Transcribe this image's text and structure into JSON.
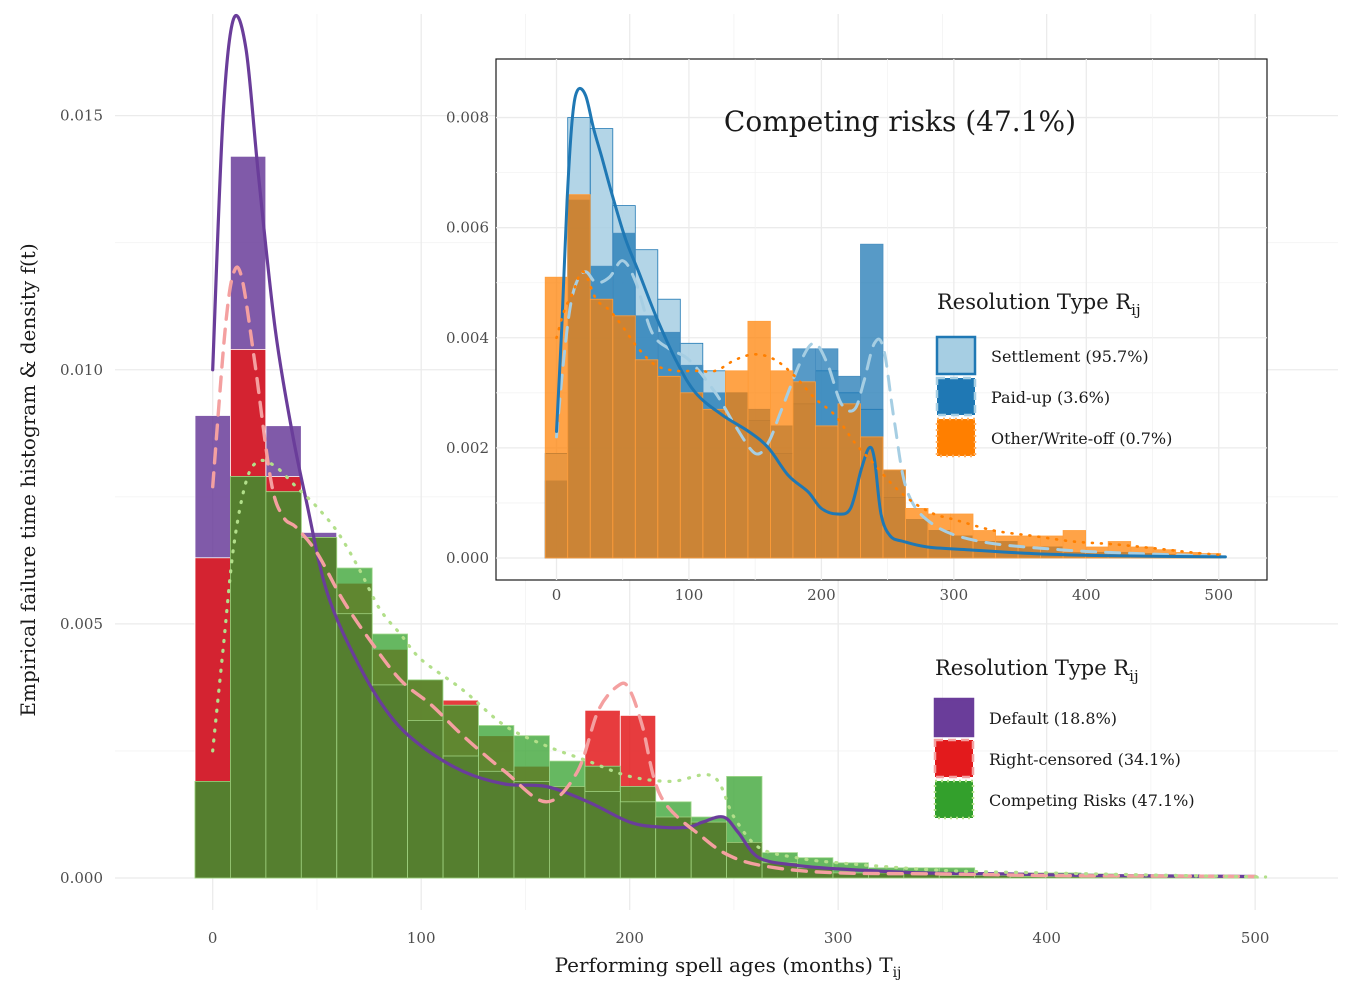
{
  "chart_data": {
    "type": "bar",
    "xlabel": "Performing spell ages (months) T",
    "xlabel_sub": "ij",
    "ylabel": "Empirical failure time histogram & density f(t)",
    "xlim": [
      -20,
      510
    ],
    "ylim": [
      0,
      0.017
    ],
    "x_ticks": [
      0,
      100,
      200,
      300,
      400,
      500
    ],
    "y_ticks": [
      0,
      0.005,
      0.01,
      0.015
    ],
    "y_tick_labels": [
      "0.000",
      "0.005",
      "0.010",
      "0.015"
    ],
    "bin_width": 17,
    "bin_starts": [
      -8.5,
      8.5,
      25.5,
      42.5,
      59.5,
      76.5,
      93.5,
      110.5,
      127.5,
      144.5,
      161.5,
      178.5,
      195.5,
      212.5,
      229.5,
      246.5,
      263.5,
      280.5,
      297.5,
      314.5,
      331.5,
      348.5,
      365.5,
      382.5,
      399.5,
      416.5,
      433.5,
      450.5,
      467.5,
      484.5
    ],
    "legend": {
      "title": "Resolution Type R",
      "title_sub": "ij",
      "position": "right"
    },
    "series": [
      {
        "name": "Default (18.8%)",
        "color": "#6a3d9a",
        "values": [
          0.0091,
          0.0142,
          0.0089,
          0.0068,
          0.0052,
          0.0038,
          0.0031,
          0.0024,
          0.0021,
          0.0019,
          0.0018,
          0.0017,
          0.0015,
          0.0012,
          0.0011,
          0.0007,
          0.0003,
          0.0002,
          0.0001,
          0.0001,
          0.0001,
          5e-05,
          5e-05,
          3e-05,
          3e-05,
          2e-05,
          2e-05,
          2e-05,
          1e-05,
          1e-05
        ],
        "density_x": [
          0,
          5,
          10,
          16,
          22,
          30,
          38,
          45,
          55,
          70,
          85,
          100,
          120,
          140,
          160,
          180,
          200,
          215,
          228,
          235,
          245,
          252,
          262,
          280,
          300,
          340,
          380,
          420,
          460,
          500
        ],
        "density_y": [
          0.01,
          0.015,
          0.0169,
          0.0163,
          0.0138,
          0.0108,
          0.0088,
          0.0074,
          0.0056,
          0.0042,
          0.0032,
          0.0026,
          0.0021,
          0.00185,
          0.0018,
          0.0015,
          0.0011,
          0.001,
          0.001,
          0.0011,
          0.0012,
          0.0009,
          0.0004,
          0.00025,
          0.00018,
          0.0001,
          8e-05,
          5e-05,
          4e-05,
          3e-05
        ]
      },
      {
        "name": "Right-censored (34.1%)",
        "color": "#e31a1c",
        "values": [
          0.0063,
          0.0104,
          0.0079,
          0.0065,
          0.0058,
          0.0045,
          0.0039,
          0.0035,
          0.0028,
          0.0022,
          0.0017,
          0.0033,
          0.0032,
          0.0009,
          0.0007,
          0.0005,
          0.0003,
          0.0002,
          0.0001,
          0.0001,
          0.0001,
          5e-05,
          5e-05,
          3e-05,
          3e-05,
          2e-05,
          2e-05,
          2e-05,
          1e-05,
          1e-05
        ],
        "density_x": [
          0,
          6,
          10,
          14,
          20,
          28,
          34,
          40,
          50,
          62,
          75,
          90,
          105,
          120,
          140,
          160,
          175,
          185,
          195,
          200,
          206,
          215,
          235,
          250,
          270,
          300,
          350,
          400,
          450,
          500
        ],
        "density_y": [
          0.0077,
          0.0108,
          0.0119,
          0.0118,
          0.0102,
          0.0078,
          0.0071,
          0.0069,
          0.0064,
          0.0055,
          0.0047,
          0.0039,
          0.0034,
          0.0028,
          0.0021,
          0.0015,
          0.0021,
          0.0033,
          0.0038,
          0.0037,
          0.003,
          0.0016,
          0.0008,
          0.0004,
          0.0002,
          0.0001,
          8e-05,
          5e-05,
          4e-05,
          3e-05
        ]
      },
      {
        "name": "Competing Risks (47.1%)",
        "color": "#33a02c",
        "values": [
          0.0019,
          0.0079,
          0.0076,
          0.0067,
          0.0061,
          0.0048,
          0.0039,
          0.0034,
          0.003,
          0.0028,
          0.0023,
          0.0022,
          0.0018,
          0.0015,
          0.0012,
          0.002,
          0.0005,
          0.0004,
          0.0003,
          0.0002,
          0.0002,
          0.0002,
          0.0001,
          0.0001,
          0.0001,
          8e-05,
          6e-05,
          5e-05,
          4e-05,
          3e-05
        ],
        "density_x": [
          0,
          5,
          10,
          16,
          22,
          30,
          40,
          50,
          60,
          70,
          80,
          90,
          100,
          120,
          140,
          160,
          180,
          200,
          220,
          240,
          250,
          262,
          280,
          300,
          350,
          400,
          450,
          505
        ],
        "density_y": [
          0.0025,
          0.0045,
          0.0065,
          0.0078,
          0.0082,
          0.0081,
          0.0077,
          0.0073,
          0.0068,
          0.0061,
          0.0053,
          0.0048,
          0.0043,
          0.0037,
          0.003,
          0.0026,
          0.0023,
          0.002,
          0.0019,
          0.002,
          0.0012,
          0.0006,
          0.0004,
          0.0003,
          0.00015,
          0.0001,
          6e-05,
          2e-05
        ]
      }
    ],
    "inset": {
      "title": "Competing risks (47.1%)",
      "xlim": [
        -20,
        510
      ],
      "ylim": [
        0,
        0.0089
      ],
      "x_ticks": [
        0,
        100,
        200,
        300,
        400,
        500
      ],
      "y_ticks": [
        0,
        0.002,
        0.004,
        0.006,
        0.008
      ],
      "y_tick_labels": [
        "0.000",
        "0.002",
        "0.004",
        "0.006",
        "0.008"
      ],
      "bin_width": 17,
      "bin_starts": [
        -8.5,
        8.5,
        25.5,
        42.5,
        59.5,
        76.5,
        93.5,
        110.5,
        127.5,
        144.5,
        161.5,
        178.5,
        195.5,
        212.5,
        229.5,
        246.5,
        263.5,
        280.5,
        297.5,
        314.5,
        331.5,
        348.5,
        365.5,
        382.5,
        399.5,
        416.5,
        433.5,
        450.5,
        467.5,
        484.5
      ],
      "legend": {
        "title": "Resolution Type R",
        "title_sub": "ij",
        "position": "right"
      },
      "series": [
        {
          "name": "Settlement (95.7%)",
          "color": "#a6cee3",
          "values": [
            0.0019,
            0.008,
            0.0078,
            0.0064,
            0.0056,
            0.0047,
            0.0039,
            0.0034,
            0.003,
            0.0025,
            0.0019,
            0.0028,
            0.0034,
            0.003,
            0.0027,
            0.0011,
            0.0007,
            0.0005,
            0.0004,
            0.0003,
            0.0003,
            0.0002,
            0.0002,
            0.0001,
            0.0001,
            0.0001,
            8e-05,
            6e-05,
            4e-05,
            3e-05
          ],
          "density_x": [
            0,
            5,
            10,
            15,
            22,
            30,
            40,
            50,
            60,
            72,
            85,
            100,
            120,
            135,
            150,
            160,
            170,
            185,
            195,
            205,
            215,
            225,
            232,
            240,
            247,
            255,
            265,
            285,
            320,
            380,
            440,
            505
          ],
          "density_y": [
            0.0022,
            0.0035,
            0.0045,
            0.005,
            0.0052,
            0.005,
            0.0051,
            0.0054,
            0.005,
            0.0041,
            0.0038,
            0.0036,
            0.003,
            0.0024,
            0.0019,
            0.0021,
            0.0027,
            0.0036,
            0.0039,
            0.0035,
            0.0028,
            0.0027,
            0.0032,
            0.0039,
            0.0038,
            0.0025,
            0.0012,
            0.0006,
            0.0003,
            0.00015,
            8e-05,
            3e-05
          ]
        },
        {
          "name": "Paid-up (3.6%)",
          "color": "#1f78b4",
          "values": [
            0.0014,
            0.0065,
            0.0053,
            0.0059,
            0.0044,
            0.0041,
            0.0035,
            0.003,
            0.003,
            0.0027,
            0.0024,
            0.0038,
            0.0038,
            0.0033,
            0.0057,
            0.0016,
            0.0007,
            0.0005,
            0.0004,
            0.0003,
            0.0003,
            0.0002,
            0.0002,
            0.0001,
            0.0001,
            0.0001,
            8e-05,
            6e-05,
            4e-05,
            3e-05
          ],
          "density_x": [
            0,
            4,
            8,
            12,
            16,
            22,
            28,
            34,
            42,
            52,
            62,
            75,
            90,
            105,
            125,
            145,
            160,
            175,
            190,
            200,
            212,
            222,
            230,
            236,
            240,
            245,
            252,
            262,
            280,
            310,
            360,
            420,
            505
          ],
          "density_y": [
            0.0023,
            0.0042,
            0.0065,
            0.008,
            0.0085,
            0.0084,
            0.0078,
            0.0073,
            0.0066,
            0.0058,
            0.0052,
            0.0044,
            0.0036,
            0.003,
            0.0026,
            0.0023,
            0.002,
            0.0015,
            0.0012,
            0.0009,
            0.0008,
            0.0009,
            0.0016,
            0.002,
            0.0018,
            0.0008,
            0.0004,
            0.0003,
            0.0002,
            0.00015,
            8e-05,
            4e-05,
            2e-05
          ]
        },
        {
          "name": "Other/Write-off (0.7%)",
          "color": "#ff7f00",
          "values": [
            0.0051,
            0.0066,
            0.0047,
            0.0044,
            0.0036,
            0.0033,
            0.003,
            0.0027,
            0.0034,
            0.0043,
            0.0034,
            0.0032,
            0.0024,
            0.0028,
            0.0022,
            0.0016,
            0.0009,
            0.0008,
            0.0008,
            0.0005,
            0.0004,
            0.0004,
            0.0004,
            0.0005,
            0.0002,
            0.0003,
            0.0002,
            0.00015,
            0.0001,
            8e-05
          ],
          "density_x": [
            0,
            6,
            12,
            20,
            30,
            40,
            50,
            62,
            75,
            90,
            105,
            120,
            135,
            150,
            165,
            180,
            195,
            210,
            225,
            240,
            255,
            270,
            285,
            300,
            330,
            360,
            390,
            420,
            450,
            480,
            505
          ],
          "density_y": [
            0.004,
            0.0045,
            0.0048,
            0.0052,
            0.0047,
            0.0045,
            0.0042,
            0.0038,
            0.0035,
            0.0034,
            0.0034,
            0.0034,
            0.0036,
            0.0037,
            0.0036,
            0.0033,
            0.0029,
            0.0026,
            0.0021,
            0.0017,
            0.0013,
            0.001,
            0.0008,
            0.0007,
            0.0005,
            0.0004,
            0.0003,
            0.00025,
            0.00018,
            0.0001,
            5e-05
          ]
        }
      ]
    }
  }
}
